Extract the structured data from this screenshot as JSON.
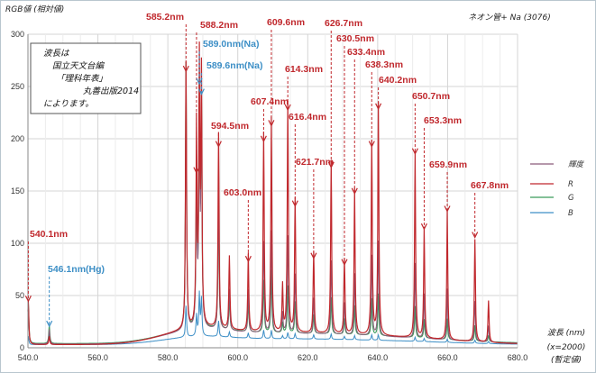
{
  "chart_data": {
    "type": "line",
    "title": "ネオン管+ Na (3076)",
    "ylabel": "RGB値 (相対値)",
    "xlabel_lines": [
      "波長 (nm)",
      "(x=2000)",
      "(暫定値)"
    ],
    "xlim": [
      540,
      680
    ],
    "ylim": [
      0,
      300
    ],
    "x_ticks": [
      "540.0",
      "560.0",
      "580.0",
      "600.0",
      "620.0",
      "640.0",
      "660.0",
      "680.0"
    ],
    "y_ticks": [
      "0",
      "50",
      "100",
      "150",
      "200",
      "250",
      "300"
    ],
    "grid": true,
    "legend_position": "right",
    "series": [
      {
        "name": "輝度",
        "color": "#8b5a7a"
      },
      {
        "name": "R",
        "color": "#c0282d"
      },
      {
        "name": "G",
        "color": "#3a9a5a"
      },
      {
        "name": "B",
        "color": "#3d8fc6"
      }
    ],
    "peaks": [
      {
        "x": 540.1,
        "R": 42,
        "G": 40,
        "B": 8
      },
      {
        "x": 546.1,
        "R": 8,
        "G": 18,
        "B": 10
      },
      {
        "x": 585.2,
        "R": 255,
        "G": 255,
        "B": 30
      },
      {
        "x": 588.2,
        "R": 190,
        "G": 150,
        "B": 20
      },
      {
        "x": 589.0,
        "R": 245,
        "G": 225,
        "B": 40
      },
      {
        "x": 589.6,
        "R": 235,
        "G": 210,
        "B": 35
      },
      {
        "x": 594.5,
        "R": 187,
        "G": 120,
        "B": 15
      },
      {
        "x": 597.6,
        "R": 70,
        "G": 30,
        "B": 5
      },
      {
        "x": 603.0,
        "R": 75,
        "G": 30,
        "B": 5
      },
      {
        "x": 607.4,
        "R": 190,
        "G": 50,
        "B": 8
      },
      {
        "x": 609.6,
        "R": 205,
        "G": 60,
        "B": 8
      },
      {
        "x": 612.8,
        "R": 45,
        "G": 10,
        "B": 3
      },
      {
        "x": 614.3,
        "R": 220,
        "G": 45,
        "B": 6
      },
      {
        "x": 616.4,
        "R": 128,
        "G": 30,
        "B": 5
      },
      {
        "x": 621.7,
        "R": 78,
        "G": 18,
        "B": 4
      },
      {
        "x": 626.7,
        "R": 165,
        "G": 35,
        "B": 5
      },
      {
        "x": 630.5,
        "R": 72,
        "G": 15,
        "B": 3
      },
      {
        "x": 633.4,
        "R": 140,
        "G": 28,
        "B": 4
      },
      {
        "x": 638.3,
        "R": 185,
        "G": 35,
        "B": 5
      },
      {
        "x": 640.2,
        "R": 222,
        "G": 40,
        "B": 5
      },
      {
        "x": 650.7,
        "R": 178,
        "G": 30,
        "B": 4
      },
      {
        "x": 653.3,
        "R": 106,
        "G": 18,
        "B": 3
      },
      {
        "x": 659.9,
        "R": 123,
        "G": 20,
        "B": 3
      },
      {
        "x": 667.8,
        "R": 98,
        "G": 15,
        "B": 3
      },
      {
        "x": 671.7,
        "R": 40,
        "G": 6,
        "B": 2
      }
    ],
    "annotations": [
      {
        "text": "540.1nm",
        "x": 540.1,
        "style": "red",
        "arrow_to": 42
      },
      {
        "text": "546.1nm(Hg)",
        "x": 546.1,
        "style": "blue",
        "arrow_to": 18
      },
      {
        "text": "585.2nm",
        "x": 585.2,
        "style": "red",
        "arrow_to": 262
      },
      {
        "text": "588.2nm",
        "x": 588.2,
        "style": "red",
        "arrow_to": 165
      },
      {
        "text": "589.0nm(Na)",
        "x": 589.0,
        "style": "blue",
        "arrow_to": 250
      },
      {
        "text": "589.6nm(Na)",
        "x": 589.6,
        "style": "blue",
        "arrow_to": 240
      },
      {
        "text": "594.5nm",
        "x": 594.5,
        "style": "red",
        "arrow_to": 190
      },
      {
        "text": "603.0nm",
        "x": 603.0,
        "style": "red",
        "arrow_to": 80
      },
      {
        "text": "607.4nm",
        "x": 607.4,
        "style": "red",
        "arrow_to": 195
      },
      {
        "text": "609.6nm",
        "x": 609.6,
        "style": "red",
        "arrow_to": 210
      },
      {
        "text": "614.3nm",
        "x": 614.3,
        "style": "red",
        "arrow_to": 225
      },
      {
        "text": "616.4nm",
        "x": 616.4,
        "style": "red",
        "arrow_to": 133
      },
      {
        "text": "621.7nm",
        "x": 621.7,
        "style": "red",
        "arrow_to": 83
      },
      {
        "text": "626.7nm",
        "x": 626.7,
        "style": "red",
        "arrow_to": 170
      },
      {
        "text": "630.5nm",
        "x": 630.5,
        "style": "red",
        "arrow_to": 77
      },
      {
        "text": "633.4nm",
        "x": 633.4,
        "style": "red",
        "arrow_to": 145
      },
      {
        "text": "638.3nm",
        "x": 638.3,
        "style": "red",
        "arrow_to": 190
      },
      {
        "text": "640.2nm",
        "x": 640.2,
        "style": "red",
        "arrow_to": 226
      },
      {
        "text": "650.7nm",
        "x": 650.7,
        "style": "red",
        "arrow_to": 183
      },
      {
        "text": "653.3nm",
        "x": 653.3,
        "style": "red",
        "arrow_to": 111
      },
      {
        "text": "659.9nm",
        "x": 659.9,
        "style": "red",
        "arrow_to": 128
      },
      {
        "text": "667.8nm",
        "x": 667.8,
        "style": "red",
        "arrow_to": 103
      }
    ],
    "note_lines": [
      "波長は",
      "国立天文台編",
      "「理科年表」",
      "丸善出版2014",
      "によります。"
    ]
  }
}
